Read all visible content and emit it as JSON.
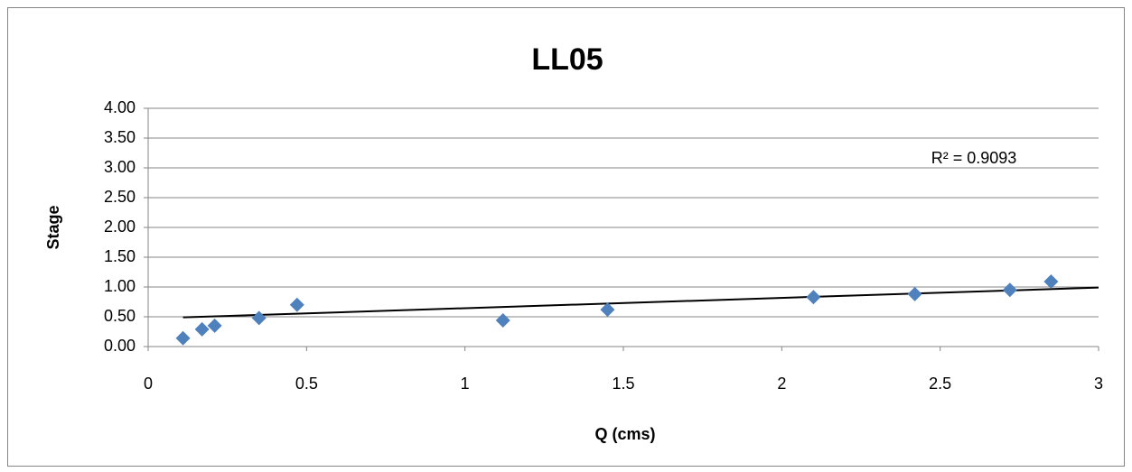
{
  "chart_data": {
    "type": "scatter",
    "title": "LL05",
    "x_label": "Q (cms)",
    "y_label": "Stage",
    "x": [
      0.11,
      0.17,
      0.21,
      0.35,
      0.47,
      1.12,
      1.45,
      2.1,
      2.42,
      2.72,
      2.85
    ],
    "values": [
      0.14,
      0.29,
      0.35,
      0.48,
      0.7,
      0.44,
      0.62,
      0.83,
      0.88,
      0.95,
      1.09
    ],
    "color": "#4f81bd",
    "trendline": {
      "x": [
        0.11,
        3
      ],
      "values": [
        0.49,
        0.99
      ],
      "color": "#000000"
    },
    "annotation": "R² = 0.9093",
    "xlim": [
      0,
      3
    ],
    "xticks": [
      0,
      0.5,
      1,
      1.5,
      2,
      2.5,
      3
    ],
    "ylim": [
      0,
      4
    ],
    "yticks": [
      {
        "value": 0,
        "label": "0.00"
      },
      {
        "value": 0.5,
        "label": "0.50"
      },
      {
        "value": 1,
        "label": "1.00"
      },
      {
        "value": 1.5,
        "label": "1.50"
      },
      {
        "value": 2,
        "label": "2.00"
      },
      {
        "value": 2.5,
        "label": "2.50"
      },
      {
        "value": 3,
        "label": "3.00"
      },
      {
        "value": 3.5,
        "label": "3.50"
      },
      {
        "value": 4,
        "label": "4.00"
      }
    ],
    "grid": true
  }
}
